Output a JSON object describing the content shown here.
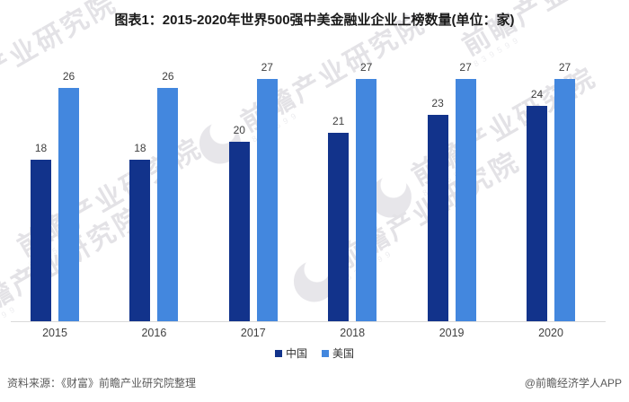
{
  "chart_data": {
    "type": "bar",
    "title": "图表1：2015-2020年世界500强中美金融业企业上榜数量(单位：家)",
    "unit": "家",
    "categories": [
      "2015",
      "2016",
      "2017",
      "2018",
      "2019",
      "2020"
    ],
    "series": [
      {
        "name": "中国",
        "color": "#12338B",
        "values": [
          18,
          18,
          20,
          21,
          23,
          24
        ]
      },
      {
        "name": "美国",
        "color": "#4387DE",
        "values": [
          26,
          26,
          27,
          27,
          27,
          27
        ]
      }
    ],
    "ylim": [
      0,
      27.5
    ],
    "grid": false,
    "axes_visible": false,
    "legend_position": "bottom",
    "data_labels": true
  },
  "footer": {
    "source": "资料来源：《财富》前瞻产业研究院整理",
    "credit": "@前瞻经济学人APP"
  },
  "watermark": {
    "text": "前瞻产业研究院",
    "digits": "839599"
  },
  "colors": {
    "china_bar": "#12338B",
    "usa_bar": "#4387DE",
    "axis_line": "#dadada",
    "title_text": "#1a1a1a",
    "value_label": "#404040",
    "footer_text": "#595959"
  }
}
